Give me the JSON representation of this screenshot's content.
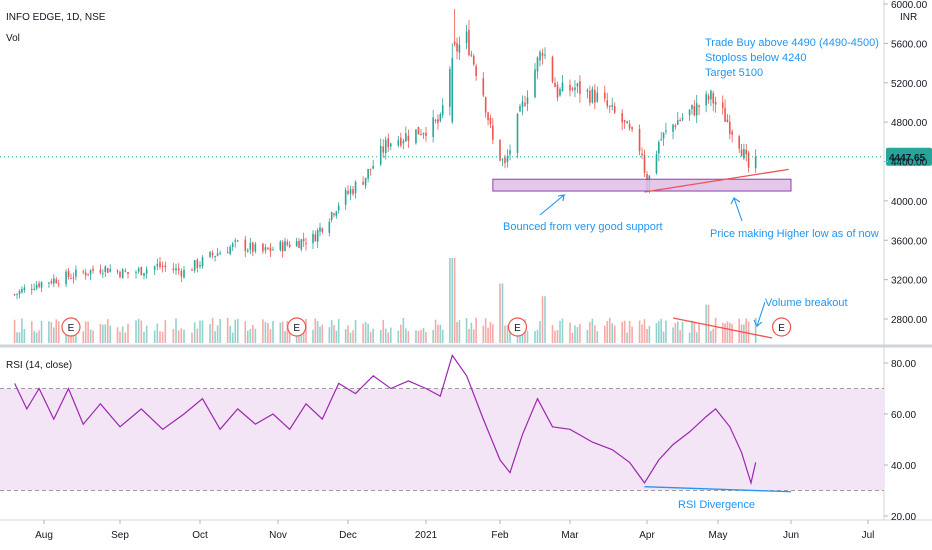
{
  "header": {
    "symbol_line": "INFO EDGE, 1D, NSE",
    "volume_label": "Vol",
    "rsi_label": "RSI (14, close)",
    "currency": "INR"
  },
  "colors": {
    "up": "#26a69a",
    "down": "#ef5350",
    "rsi_line": "#9c27b0",
    "rsi_band": "#f3e5f5",
    "annotation": "#2196f3",
    "support_box": "#e1bee7",
    "trendline": "#ef5350"
  },
  "chart_data": [
    {
      "type": "candlestick",
      "title": "INFO EDGE, 1D, NSE",
      "ylim": [
        2600,
        6000
      ],
      "y_ticks": [
        6000,
        5600,
        5200,
        4800,
        4400,
        4000,
        3600,
        3200,
        2800
      ],
      "y_tick_labels": [
        "6000.00",
        "5600.00",
        "5200.00",
        "4800.00",
        "4400.00",
        "4000.00",
        "3600.00",
        "3200.00",
        "2800.00"
      ],
      "last_price": 4447.65,
      "last_price_label": "4447.65",
      "x_ticks": [
        "Aug",
        "Sep",
        "Oct",
        "Nov",
        "Dec",
        "2021",
        "Feb",
        "Mar",
        "Apr",
        "May",
        "Jun",
        "Jul"
      ],
      "anchor_closes": [
        [
          "2020-07-20",
          3050
        ],
        [
          "2020-07-28",
          3150
        ],
        [
          "2020-08-05",
          3200
        ],
        [
          "2020-08-14",
          3250
        ],
        [
          "2020-08-25",
          3320
        ],
        [
          "2020-09-04",
          3260
        ],
        [
          "2020-09-15",
          3340
        ],
        [
          "2020-09-25",
          3280
        ],
        [
          "2020-10-06",
          3450
        ],
        [
          "2020-10-16",
          3560
        ],
        [
          "2020-10-26",
          3480
        ],
        [
          "2020-11-05",
          3560
        ],
        [
          "2020-11-16",
          3620
        ],
        [
          "2020-11-27",
          3980
        ],
        [
          "2020-12-08",
          4250
        ],
        [
          "2020-12-17",
          4600
        ],
        [
          "2020-12-28",
          4700
        ],
        [
          "2021-01-07",
          4800
        ],
        [
          "2021-01-12",
          5500
        ],
        [
          "2021-01-18",
          5650
        ],
        [
          "2021-01-25",
          5100
        ],
        [
          "2021-01-29",
          4600
        ],
        [
          "2021-02-03",
          4350
        ],
        [
          "2021-02-08",
          4800
        ],
        [
          "2021-02-13",
          5200
        ],
        [
          "2021-02-18",
          5550
        ],
        [
          "2021-02-24",
          5100
        ],
        [
          "2021-03-03",
          5150
        ],
        [
          "2021-03-12",
          5050
        ],
        [
          "2021-03-22",
          4800
        ],
        [
          "2021-03-30",
          4500
        ],
        [
          "2021-04-01",
          4150
        ],
        [
          "2021-04-06",
          4600
        ],
        [
          "2021-04-13",
          4800
        ],
        [
          "2021-04-22",
          4950
        ],
        [
          "2021-04-28",
          5050
        ],
        [
          "2021-05-04",
          4850
        ],
        [
          "2021-05-10",
          4600
        ],
        [
          "2021-05-14",
          4330
        ],
        [
          "2021-05-17",
          4447.65
        ]
      ],
      "volume_spikes": [
        [
          "2021-01-12",
          1.0
        ],
        [
          "2021-02-01",
          0.7
        ],
        [
          "2021-02-19",
          0.55
        ],
        [
          "2021-04-26",
          0.45
        ]
      ],
      "earnings_markers": [
        [
          "2020-08-12",
          "E"
        ],
        [
          "2020-11-09",
          "E"
        ],
        [
          "2021-02-08",
          "E"
        ],
        [
          "2021-05-28",
          "E"
        ]
      ],
      "support_zone": [
        4100,
        4220
      ],
      "annotations": {
        "trade_plan": [
          "Trade Buy above 4490 (4490-4500)",
          "Stoploss below 4240",
          "Target 5100"
        ],
        "support_note": "Bounced from very good support",
        "higher_low_note": "Price making Higher low as of now",
        "volume_note": "Volume breakout"
      }
    },
    {
      "type": "line",
      "title": "RSI (14, close)",
      "ylim": [
        20,
        85
      ],
      "y_ticks": [
        80,
        60,
        40,
        20
      ],
      "y_tick_labels": [
        "80.00",
        "60.00",
        "40.00",
        "20.00"
      ],
      "bands": [
        30,
        70
      ],
      "series": [
        {
          "name": "RSI (14, close)",
          "points": [
            [
              "2020-07-20",
              72
            ],
            [
              "2020-07-25",
              62
            ],
            [
              "2020-07-30",
              70
            ],
            [
              "2020-08-05",
              58
            ],
            [
              "2020-08-11",
              70
            ],
            [
              "2020-08-17",
              56
            ],
            [
              "2020-08-24",
              64
            ],
            [
              "2020-09-01",
              55
            ],
            [
              "2020-09-09",
              62
            ],
            [
              "2020-09-17",
              54
            ],
            [
              "2020-09-25",
              60
            ],
            [
              "2020-10-02",
              66
            ],
            [
              "2020-10-09",
              54
            ],
            [
              "2020-10-16",
              62
            ],
            [
              "2020-10-23",
              56
            ],
            [
              "2020-10-30",
              60
            ],
            [
              "2020-11-06",
              54
            ],
            [
              "2020-11-13",
              64
            ],
            [
              "2020-11-20",
              58
            ],
            [
              "2020-11-27",
              72
            ],
            [
              "2020-12-04",
              68
            ],
            [
              "2020-12-11",
              75
            ],
            [
              "2020-12-18",
              70
            ],
            [
              "2020-12-25",
              73
            ],
            [
              "2021-01-01",
              70
            ],
            [
              "2021-01-07",
              67
            ],
            [
              "2021-01-12",
              83
            ],
            [
              "2021-01-18",
              75
            ],
            [
              "2021-01-25",
              58
            ],
            [
              "2021-02-01",
              42
            ],
            [
              "2021-02-05",
              37
            ],
            [
              "2021-02-10",
              52
            ],
            [
              "2021-02-16",
              66
            ],
            [
              "2021-02-22",
              55
            ],
            [
              "2021-03-01",
              54
            ],
            [
              "2021-03-10",
              49
            ],
            [
              "2021-03-18",
              46
            ],
            [
              "2021-03-25",
              41
            ],
            [
              "2021-03-31",
              33
            ],
            [
              "2021-04-06",
              42
            ],
            [
              "2021-04-12",
              48
            ],
            [
              "2021-04-19",
              53
            ],
            [
              "2021-04-26",
              59
            ],
            [
              "2021-04-30",
              62
            ],
            [
              "2021-05-06",
              55
            ],
            [
              "2021-05-11",
              45
            ],
            [
              "2021-05-15",
              33
            ],
            [
              "2021-05-17",
              41
            ]
          ]
        }
      ],
      "annotations": {
        "divergence_note": "RSI Divergence"
      }
    }
  ]
}
